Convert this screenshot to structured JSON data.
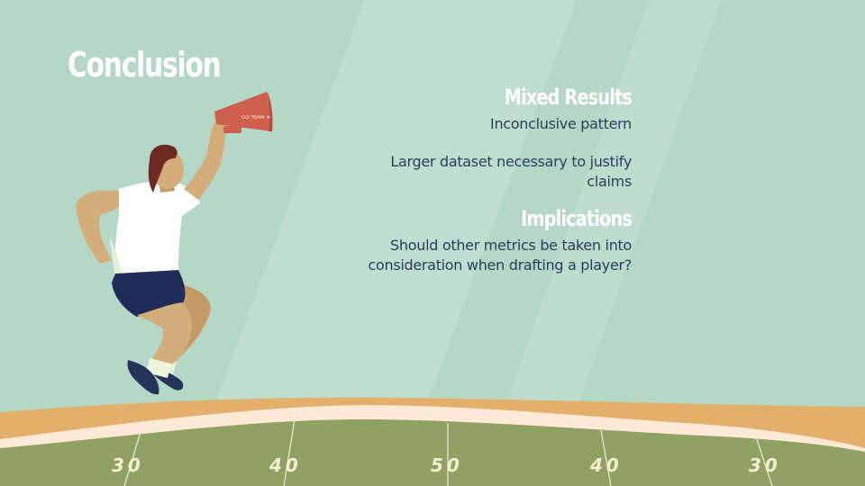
{
  "slide": {
    "title": "Conclusion"
  },
  "sections": [
    {
      "heading": "Mixed Results",
      "paragraphs": [
        "Inconclusive pattern",
        "Larger dataset necessary to justify claims"
      ]
    },
    {
      "heading": "Implications",
      "paragraphs": [
        "Should other metrics be taken into consideration when drafting a player?"
      ]
    }
  ],
  "megaphone": {
    "text": "GO TEAM ★"
  },
  "field": {
    "yard_numbers": [
      "30",
      "40",
      "50",
      "40",
      "30"
    ]
  },
  "colors": {
    "background": "#b5d8c6",
    "field_green": "#8fa264",
    "track_orange": "#e2b06b",
    "title_white": "#ffffff",
    "body_navy": "#2c3c5e",
    "megaphone_red": "#d0604e"
  }
}
